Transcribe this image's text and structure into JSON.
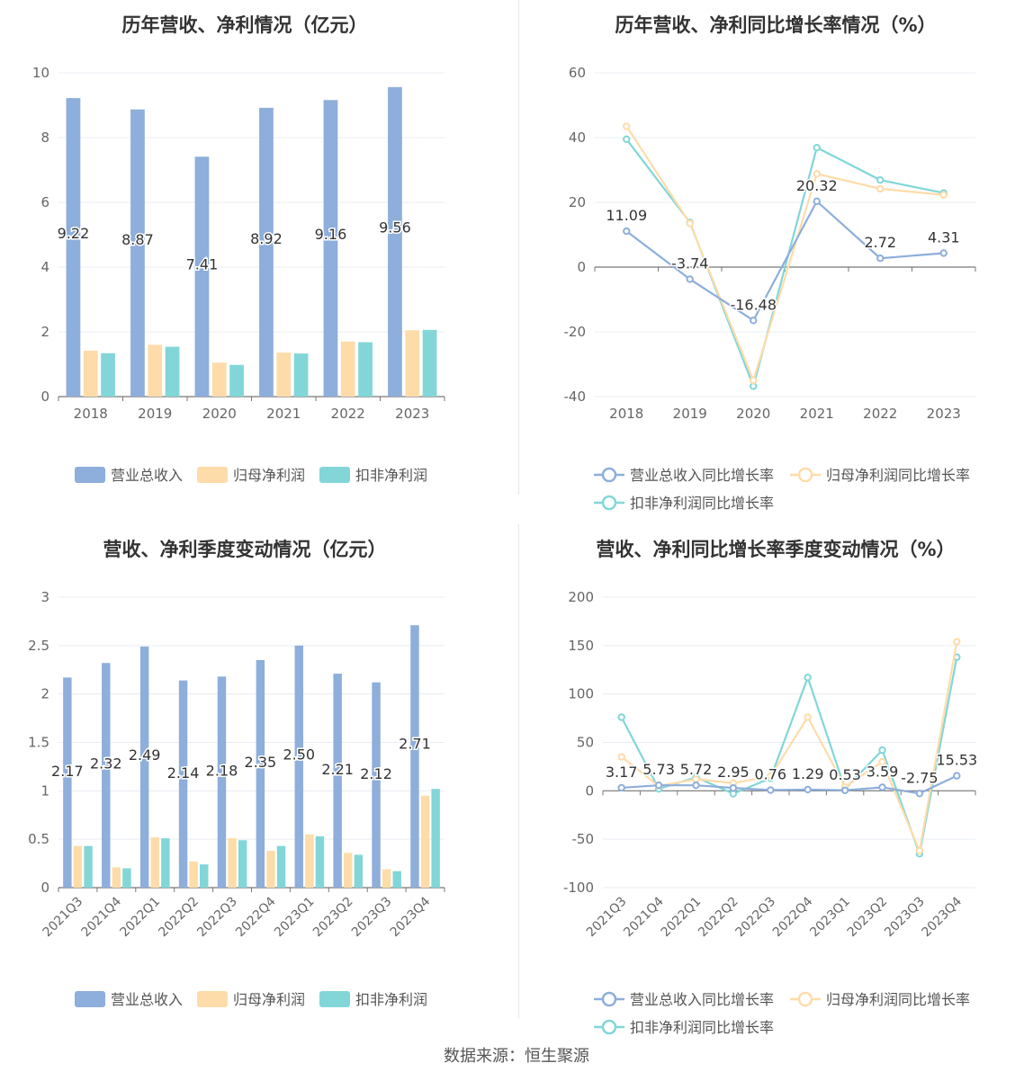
{
  "source_text": "数据来源：恒生聚源",
  "colors": {
    "revenue": "#8eaedb",
    "net_profit": "#fddcaa",
    "deducted_profit": "#82d6d8",
    "axis_text": "#666666",
    "grid": "#e8ecf3",
    "title": "#333333",
    "label": "#333333"
  },
  "chart_data": [
    {
      "type": "bar",
      "title": "历年营收、净利情况（亿元）",
      "categories": [
        "2018",
        "2019",
        "2020",
        "2021",
        "2022",
        "2023"
      ],
      "ylim": [
        0,
        10
      ],
      "yticks": [
        0,
        2,
        4,
        6,
        8,
        10
      ],
      "grid": true,
      "legend_position": "bottom",
      "series": [
        {
          "name": "营业总收入",
          "values": [
            9.22,
            8.87,
            7.41,
            8.92,
            9.16,
            9.56
          ],
          "labels": [
            "9.22",
            "8.87",
            "7.41",
            "8.92",
            "9.16",
            "9.56"
          ]
        },
        {
          "name": "归母净利润",
          "values": [
            1.42,
            1.6,
            1.05,
            1.36,
            1.7,
            2.05
          ]
        },
        {
          "name": "扣非净利润",
          "values": [
            1.34,
            1.54,
            0.98,
            1.33,
            1.68,
            2.06
          ]
        }
      ]
    },
    {
      "type": "line",
      "title": "历年营收、净利同比增长率情况（%）",
      "categories": [
        "2018",
        "2019",
        "2020",
        "2021",
        "2022",
        "2023"
      ],
      "ylim": [
        -40,
        60
      ],
      "yticks": [
        -40,
        -20,
        0,
        20,
        40,
        60
      ],
      "grid": true,
      "legend_position": "bottom",
      "series": [
        {
          "name": "营业总收入同比增长率",
          "values": [
            11.09,
            -3.74,
            -16.48,
            20.32,
            2.72,
            4.31
          ],
          "labels": [
            "11.09",
            "-3.74",
            "-16.48",
            "20.32",
            "2.72",
            "4.31"
          ]
        },
        {
          "name": "归母净利润同比增长率",
          "values": [
            43.5,
            13.5,
            -35.0,
            28.8,
            24.2,
            22.3
          ]
        },
        {
          "name": "扣非净利润同比增长率",
          "values": [
            39.5,
            13.8,
            -36.8,
            36.9,
            26.9,
            22.9
          ]
        }
      ]
    },
    {
      "type": "bar",
      "title": "营收、净利季度变动情况（亿元）",
      "categories": [
        "2021Q3",
        "2021Q4",
        "2022Q1",
        "2022Q2",
        "2022Q3",
        "2022Q4",
        "2023Q1",
        "2023Q2",
        "2023Q3",
        "2023Q4"
      ],
      "ylim": [
        0,
        3
      ],
      "yticks": [
        0,
        0.5,
        1,
        1.5,
        2,
        2.5,
        3
      ],
      "grid": true,
      "legend_position": "bottom",
      "series": [
        {
          "name": "营业总收入",
          "values": [
            2.17,
            2.32,
            2.49,
            2.14,
            2.18,
            2.35,
            2.5,
            2.21,
            2.12,
            2.71
          ],
          "labels": [
            "2.17",
            "2.32",
            "2.49",
            "2.14",
            "2.18",
            "2.35",
            "2.50",
            "2.21",
            "2.12",
            "2.71"
          ]
        },
        {
          "name": "归母净利润",
          "values": [
            0.43,
            0.21,
            0.52,
            0.27,
            0.51,
            0.38,
            0.55,
            0.36,
            0.19,
            0.95
          ]
        },
        {
          "name": "扣非净利润",
          "values": [
            0.43,
            0.2,
            0.51,
            0.24,
            0.49,
            0.43,
            0.53,
            0.34,
            0.17,
            1.02
          ]
        }
      ]
    },
    {
      "type": "line",
      "title": "营收、净利同比增长率季度变动情况（%）",
      "categories": [
        "2021Q3",
        "2021Q4",
        "2022Q1",
        "2022Q2",
        "2022Q3",
        "2022Q4",
        "2023Q1",
        "2023Q2",
        "2023Q3",
        "2023Q4"
      ],
      "ylim": [
        -100,
        200
      ],
      "yticks": [
        -100,
        -50,
        0,
        50,
        100,
        150,
        200
      ],
      "grid": true,
      "legend_position": "bottom",
      "series": [
        {
          "name": "营业总收入同比增长率",
          "values": [
            3.17,
            5.73,
            5.72,
            2.95,
            0.76,
            1.29,
            0.53,
            3.59,
            -2.75,
            15.53
          ],
          "labels": [
            "3.17",
            "5.73",
            "5.72",
            "2.95",
            "0.76",
            "1.29",
            "0.53",
            "3.59",
            "-2.75",
            "15.53"
          ]
        },
        {
          "name": "归母净利润同比增长率",
          "values": [
            35,
            5,
            12,
            8,
            15,
            76,
            4,
            30,
            -62,
            154
          ]
        },
        {
          "name": "扣非净利润同比增长率",
          "values": [
            76,
            2,
            14,
            -3,
            13,
            117,
            2,
            42,
            -65,
            138
          ]
        }
      ]
    }
  ]
}
